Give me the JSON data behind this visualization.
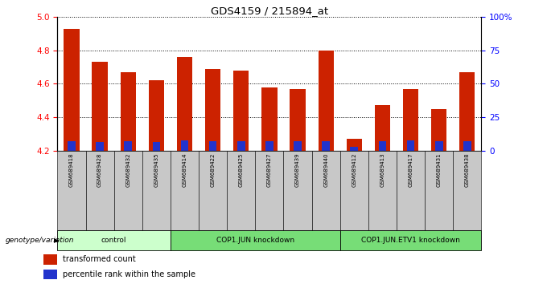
{
  "title": "GDS4159 / 215894_at",
  "samples": [
    "GSM689418",
    "GSM689428",
    "GSM689432",
    "GSM689435",
    "GSM689414",
    "GSM689422",
    "GSM689425",
    "GSM689427",
    "GSM689439",
    "GSM689440",
    "GSM689412",
    "GSM689413",
    "GSM689417",
    "GSM689431",
    "GSM689438"
  ],
  "transformed_count": [
    4.93,
    4.73,
    4.67,
    4.62,
    4.76,
    4.69,
    4.68,
    4.58,
    4.57,
    4.8,
    4.27,
    4.47,
    4.57,
    4.45,
    4.67
  ],
  "percentile_rank": [
    7.0,
    6.5,
    7.0,
    6.5,
    7.5,
    7.0,
    7.0,
    7.0,
    7.0,
    7.0,
    3.0,
    7.0,
    7.5,
    7.0,
    7.0
  ],
  "ylim_left": [
    4.2,
    5.0
  ],
  "ylim_right": [
    0,
    100
  ],
  "yticks_left": [
    4.2,
    4.4,
    4.6,
    4.8,
    5.0
  ],
  "yticks_right": [
    0,
    25,
    50,
    75,
    100
  ],
  "ytick_labels_right": [
    "0",
    "25",
    "50",
    "75",
    "100%"
  ],
  "bar_color_red": "#CC2200",
  "bar_color_blue": "#2233CC",
  "groups": [
    {
      "label": "control",
      "start": 0,
      "end": 4,
      "color": "#ccffcc"
    },
    {
      "label": "COP1.JUN knockdown",
      "start": 4,
      "end": 10,
      "color": "#77dd77"
    },
    {
      "label": "COP1.JUN.ETV1 knockdown",
      "start": 10,
      "end": 15,
      "color": "#77dd77"
    }
  ],
  "group_label": "genotype/variation",
  "legend_items": [
    {
      "label": "transformed count",
      "color": "#CC2200"
    },
    {
      "label": "percentile rank within the sample",
      "color": "#2233CC"
    }
  ],
  "bar_width": 0.55,
  "base_value": 4.2
}
